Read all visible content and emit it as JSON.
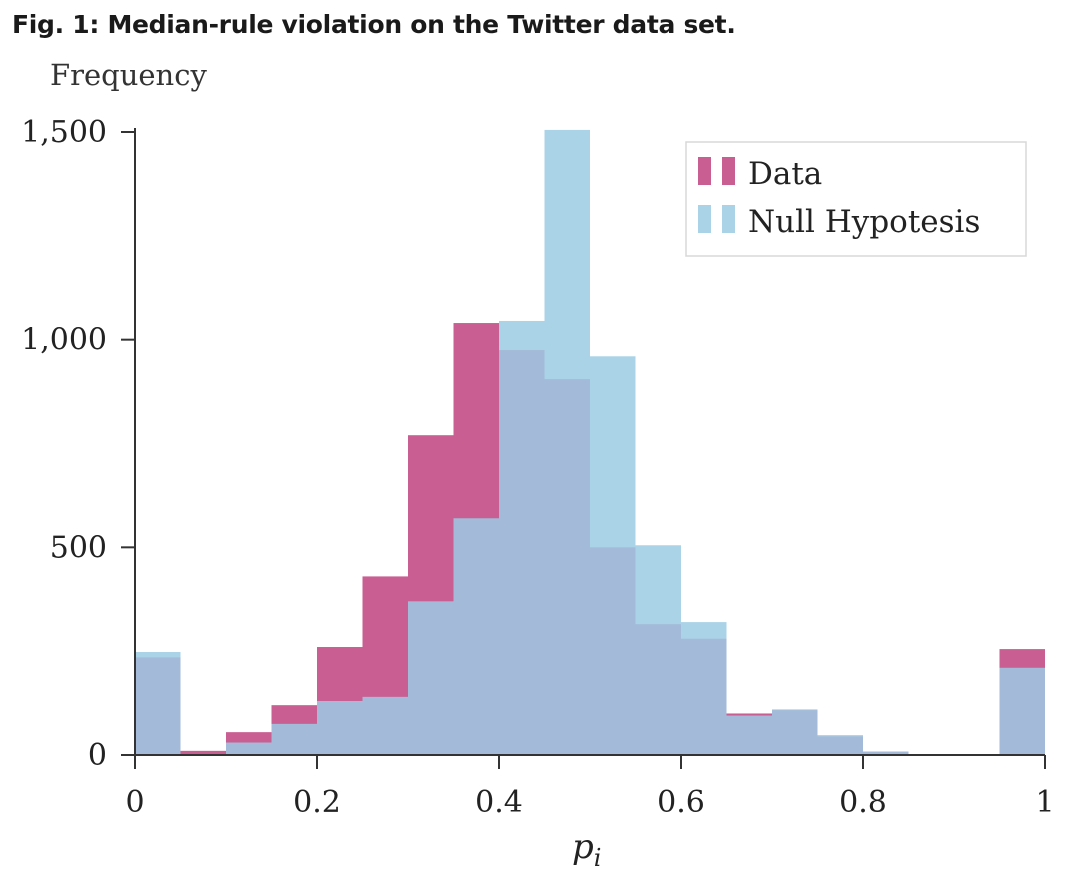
{
  "figure": {
    "title": "Fig. 1: Median-rule violation on the Twitter data set."
  },
  "chart_data": {
    "type": "bar",
    "ylabel": "Frequency",
    "xlabel": "p",
    "xlabel_subscript": "i",
    "xlim": [
      0,
      1
    ],
    "ylim": [
      0,
      1500
    ],
    "xticks": [
      0,
      0.2,
      0.4,
      0.6,
      0.8,
      1
    ],
    "xtick_labels": [
      "0",
      "0.2",
      "0.4",
      "0.6",
      "0.8",
      "1"
    ],
    "yticks": [
      0,
      500,
      1000,
      1500
    ],
    "ytick_labels": [
      "0",
      "500",
      "1,000",
      "1,500"
    ],
    "bin_edges": [
      0,
      0.05,
      0.1,
      0.15,
      0.2,
      0.25,
      0.3,
      0.35,
      0.4,
      0.45,
      0.5,
      0.55,
      0.6,
      0.65,
      0.7,
      0.75,
      0.8,
      0.85,
      0.9,
      0.95,
      1.0
    ],
    "series": [
      {
        "name": "Data",
        "color": "#c0427f",
        "opacity": 0.85,
        "values": [
          235,
          10,
          55,
          120,
          260,
          430,
          770,
          1040,
          975,
          905,
          500,
          315,
          280,
          100,
          108,
          45,
          8,
          0,
          0,
          255
        ]
      },
      {
        "name": "Null Hypotesis",
        "color": "#9ccbe4",
        "opacity": 0.85,
        "values": [
          248,
          0,
          30,
          75,
          130,
          140,
          370,
          570,
          1045,
          1505,
          960,
          505,
          320,
          95,
          110,
          48,
          8,
          0,
          0,
          210
        ]
      }
    ],
    "legend": {
      "position": "top-right"
    },
    "grid": false
  }
}
